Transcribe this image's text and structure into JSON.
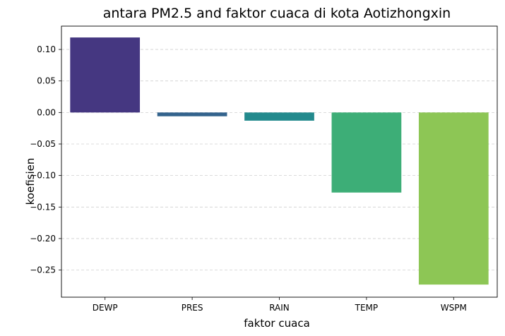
{
  "chart_data": {
    "type": "bar",
    "title": "antara PM2.5 and faktor cuaca di kota Aotizhongxin",
    "xlabel": "faktor cuaca",
    "ylabel": "koefisien",
    "categories": [
      "DEWP",
      "PRES",
      "RAIN",
      "TEMP",
      "WSPM"
    ],
    "values": [
      0.119,
      -0.006,
      -0.013,
      -0.127,
      -0.273
    ],
    "ylim": [
      -0.293,
      0.137
    ],
    "yticks": [
      0.1,
      0.05,
      0.0,
      -0.05,
      -0.1,
      -0.15,
      -0.2,
      -0.25
    ],
    "ytick_labels": [
      "0.10",
      "0.05",
      "0.00",
      "−0.05",
      "−0.10",
      "−0.15",
      "−0.20",
      "−0.25"
    ],
    "grid": {
      "y": true,
      "x": false,
      "style": "dashed"
    },
    "colors": [
      "#453781",
      "#33638d",
      "#238a8d",
      "#3dae77",
      "#8dc655"
    ]
  }
}
